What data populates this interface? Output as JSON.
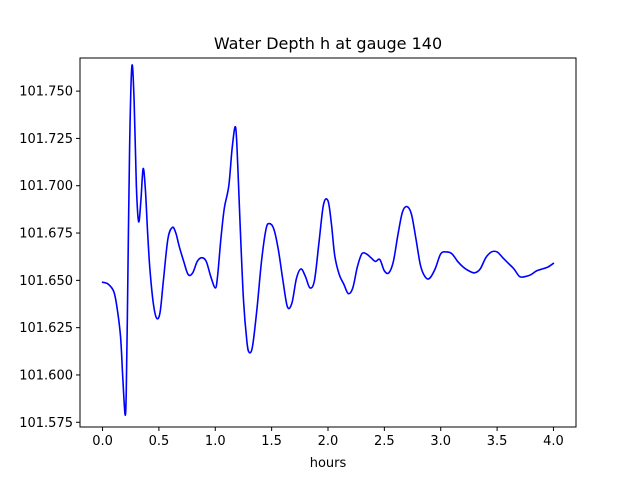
{
  "chart_data": {
    "type": "line",
    "title": "Water Depth h at gauge 140",
    "xlabel": "hours",
    "ylabel": "",
    "xlim": [
      -0.2,
      4.2
    ],
    "ylim": [
      101.5725,
      101.7675
    ],
    "xticks": [
      0.0,
      0.5,
      1.0,
      1.5,
      2.0,
      2.5,
      3.0,
      3.5,
      4.0
    ],
    "xtick_labels": [
      "0.0",
      "0.5",
      "1.0",
      "1.5",
      "2.0",
      "2.5",
      "3.0",
      "3.5",
      "4.0"
    ],
    "yticks": [
      101.575,
      101.6,
      101.625,
      101.65,
      101.675,
      101.7,
      101.725,
      101.75
    ],
    "ytick_labels": [
      "101.575",
      "101.600",
      "101.625",
      "101.650",
      "101.675",
      "101.700",
      "101.725",
      "101.750"
    ],
    "grid": false,
    "series": [
      {
        "color": "#0000ff",
        "x": [
          0.0,
          0.05,
          0.1,
          0.13,
          0.16,
          0.18,
          0.2,
          0.21,
          0.22,
          0.24,
          0.26,
          0.28,
          0.3,
          0.32,
          0.34,
          0.36,
          0.38,
          0.4,
          0.42,
          0.45,
          0.48,
          0.51,
          0.54,
          0.58,
          0.62,
          0.65,
          0.68,
          0.72,
          0.76,
          0.8,
          0.84,
          0.88,
          0.92,
          0.96,
          1.0,
          1.02,
          1.05,
          1.08,
          1.12,
          1.15,
          1.18,
          1.2,
          1.22,
          1.25,
          1.28,
          1.3,
          1.33,
          1.37,
          1.41,
          1.45,
          1.48,
          1.52,
          1.56,
          1.6,
          1.64,
          1.68,
          1.72,
          1.76,
          1.8,
          1.84,
          1.88,
          1.92,
          1.96,
          2.0,
          2.03,
          2.06,
          2.1,
          2.14,
          2.18,
          2.22,
          2.26,
          2.3,
          2.34,
          2.38,
          2.42,
          2.46,
          2.5,
          2.54,
          2.58,
          2.62,
          2.66,
          2.7,
          2.74,
          2.78,
          2.82,
          2.86,
          2.9,
          2.95,
          3.0,
          3.05,
          3.1,
          3.15,
          3.2,
          3.25,
          3.3,
          3.35,
          3.4,
          3.45,
          3.5,
          3.55,
          3.6,
          3.65,
          3.7,
          3.75,
          3.8,
          3.85,
          3.9,
          3.95,
          4.0
        ],
        "y": [
          101.649,
          101.648,
          101.644,
          101.635,
          101.62,
          101.598,
          101.579,
          101.59,
          101.63,
          101.72,
          101.763,
          101.745,
          101.7,
          101.681,
          101.692,
          101.709,
          101.698,
          101.675,
          101.656,
          101.638,
          101.63,
          101.633,
          101.65,
          101.672,
          101.678,
          101.675,
          101.668,
          101.66,
          101.653,
          101.654,
          101.66,
          101.662,
          101.66,
          101.652,
          101.646,
          101.652,
          101.672,
          101.688,
          101.7,
          101.72,
          101.731,
          101.71,
          101.68,
          101.64,
          101.618,
          101.612,
          101.615,
          101.635,
          101.66,
          101.677,
          101.68,
          101.677,
          101.666,
          101.65,
          101.636,
          101.638,
          101.651,
          101.656,
          101.652,
          101.646,
          101.65,
          101.67,
          101.69,
          101.692,
          101.68,
          101.663,
          101.653,
          101.648,
          101.643,
          101.646,
          101.657,
          101.664,
          101.664,
          101.662,
          101.66,
          101.661,
          101.655,
          101.654,
          101.66,
          101.674,
          101.686,
          101.689,
          101.685,
          101.672,
          101.658,
          101.652,
          101.651,
          101.656,
          101.664,
          101.665,
          101.664,
          101.66,
          101.657,
          101.655,
          101.654,
          101.656,
          101.662,
          101.665,
          101.665,
          101.662,
          101.659,
          101.656,
          101.652,
          101.652,
          101.653,
          101.655,
          101.656,
          101.657,
          101.659
        ]
      }
    ]
  }
}
